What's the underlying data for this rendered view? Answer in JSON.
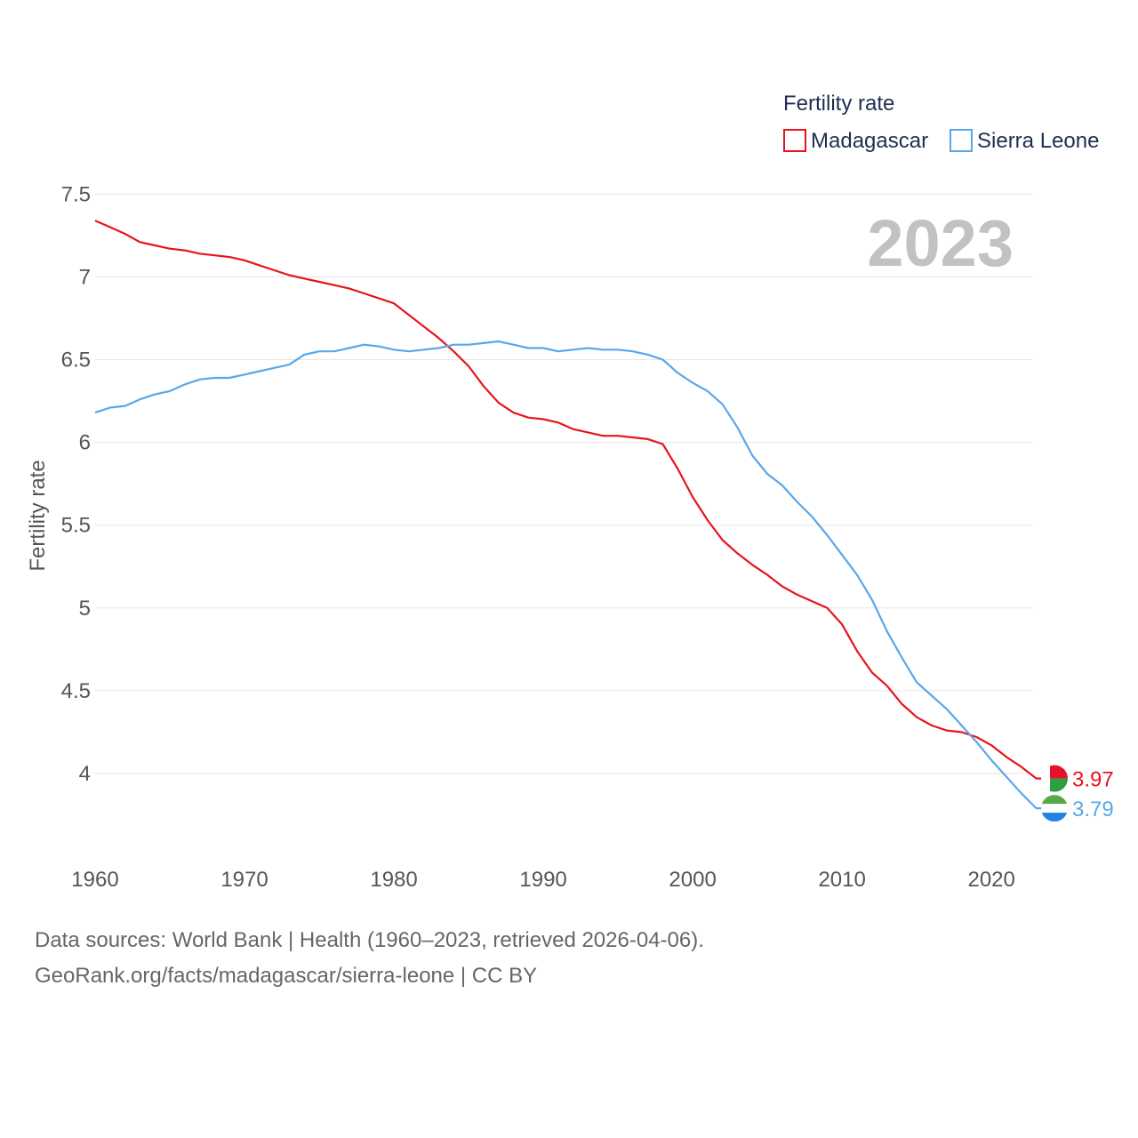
{
  "chart_data": {
    "type": "line",
    "title": "",
    "year_label": "2023",
    "ylabel": "Fertility rate",
    "xlabel": "",
    "xlim": [
      1960,
      2023
    ],
    "ylim": [
      3.5,
      7.5
    ],
    "x_ticks": [
      1960,
      1970,
      1980,
      1990,
      2000,
      2010,
      2020
    ],
    "y_ticks": [
      4,
      4.5,
      5,
      5.5,
      6,
      6.5,
      7,
      7.5
    ],
    "y_tick_labels": [
      "4",
      "4.5",
      "5",
      "5.5",
      "6",
      "6.5",
      "7",
      "7.5"
    ],
    "legend": {
      "title": "Fertility rate",
      "position": "top-right"
    },
    "x": [
      1960,
      1961,
      1962,
      1963,
      1964,
      1965,
      1966,
      1967,
      1968,
      1969,
      1970,
      1971,
      1972,
      1973,
      1974,
      1975,
      1976,
      1977,
      1978,
      1979,
      1980,
      1981,
      1982,
      1983,
      1984,
      1985,
      1986,
      1987,
      1988,
      1989,
      1990,
      1991,
      1992,
      1993,
      1994,
      1995,
      1996,
      1997,
      1998,
      1999,
      2000,
      2001,
      2002,
      2003,
      2004,
      2005,
      2006,
      2007,
      2008,
      2009,
      2010,
      2011,
      2012,
      2013,
      2014,
      2015,
      2016,
      2017,
      2018,
      2019,
      2020,
      2021,
      2022,
      2023
    ],
    "series": [
      {
        "name": "Madagascar",
        "color": "#e8141c",
        "end_label": "3.97",
        "values": [
          7.34,
          7.3,
          7.26,
          7.21,
          7.19,
          7.17,
          7.16,
          7.14,
          7.13,
          7.12,
          7.1,
          7.07,
          7.04,
          7.01,
          6.99,
          6.97,
          6.95,
          6.93,
          6.9,
          6.87,
          6.84,
          6.77,
          6.7,
          6.63,
          6.55,
          6.46,
          6.34,
          6.24,
          6.18,
          6.15,
          6.14,
          6.12,
          6.08,
          6.06,
          6.04,
          6.04,
          6.03,
          6.02,
          5.99,
          5.84,
          5.67,
          5.53,
          5.41,
          5.33,
          5.26,
          5.2,
          5.13,
          5.08,
          5.04,
          5.0,
          4.9,
          4.74,
          4.61,
          4.53,
          4.42,
          4.34,
          4.29,
          4.26,
          4.25,
          4.22,
          4.17,
          4.1,
          4.04,
          3.97
        ]
      },
      {
        "name": "Sierra Leone",
        "color": "#5aa7e8",
        "end_label": "3.79",
        "values": [
          6.18,
          6.21,
          6.22,
          6.26,
          6.29,
          6.31,
          6.35,
          6.38,
          6.39,
          6.39,
          6.41,
          6.43,
          6.45,
          6.47,
          6.53,
          6.55,
          6.55,
          6.57,
          6.59,
          6.58,
          6.56,
          6.55,
          6.56,
          6.57,
          6.59,
          6.59,
          6.6,
          6.61,
          6.59,
          6.57,
          6.57,
          6.55,
          6.56,
          6.57,
          6.56,
          6.56,
          6.55,
          6.53,
          6.5,
          6.42,
          6.36,
          6.31,
          6.23,
          6.09,
          5.92,
          5.81,
          5.74,
          5.64,
          5.55,
          5.44,
          5.32,
          5.2,
          5.05,
          4.86,
          4.7,
          4.55,
          4.47,
          4.39,
          4.29,
          4.19,
          4.08,
          3.98,
          3.88,
          3.79
        ]
      }
    ],
    "flags": [
      {
        "name": "madagascar-flag-icon",
        "colors": [
          "#ffffff",
          "#e8112d",
          "#2e9e3f"
        ]
      },
      {
        "name": "sierra-leone-flag-icon",
        "colors": [
          "#58a846",
          "#ffffff",
          "#1f84e0"
        ]
      }
    ]
  },
  "footer": {
    "line1": "Data sources: World Bank | Health (1960–2023, retrieved 2026-04-06).",
    "line2": "GeoRank.org/facts/madagascar/sierra-leone | CC BY"
  }
}
